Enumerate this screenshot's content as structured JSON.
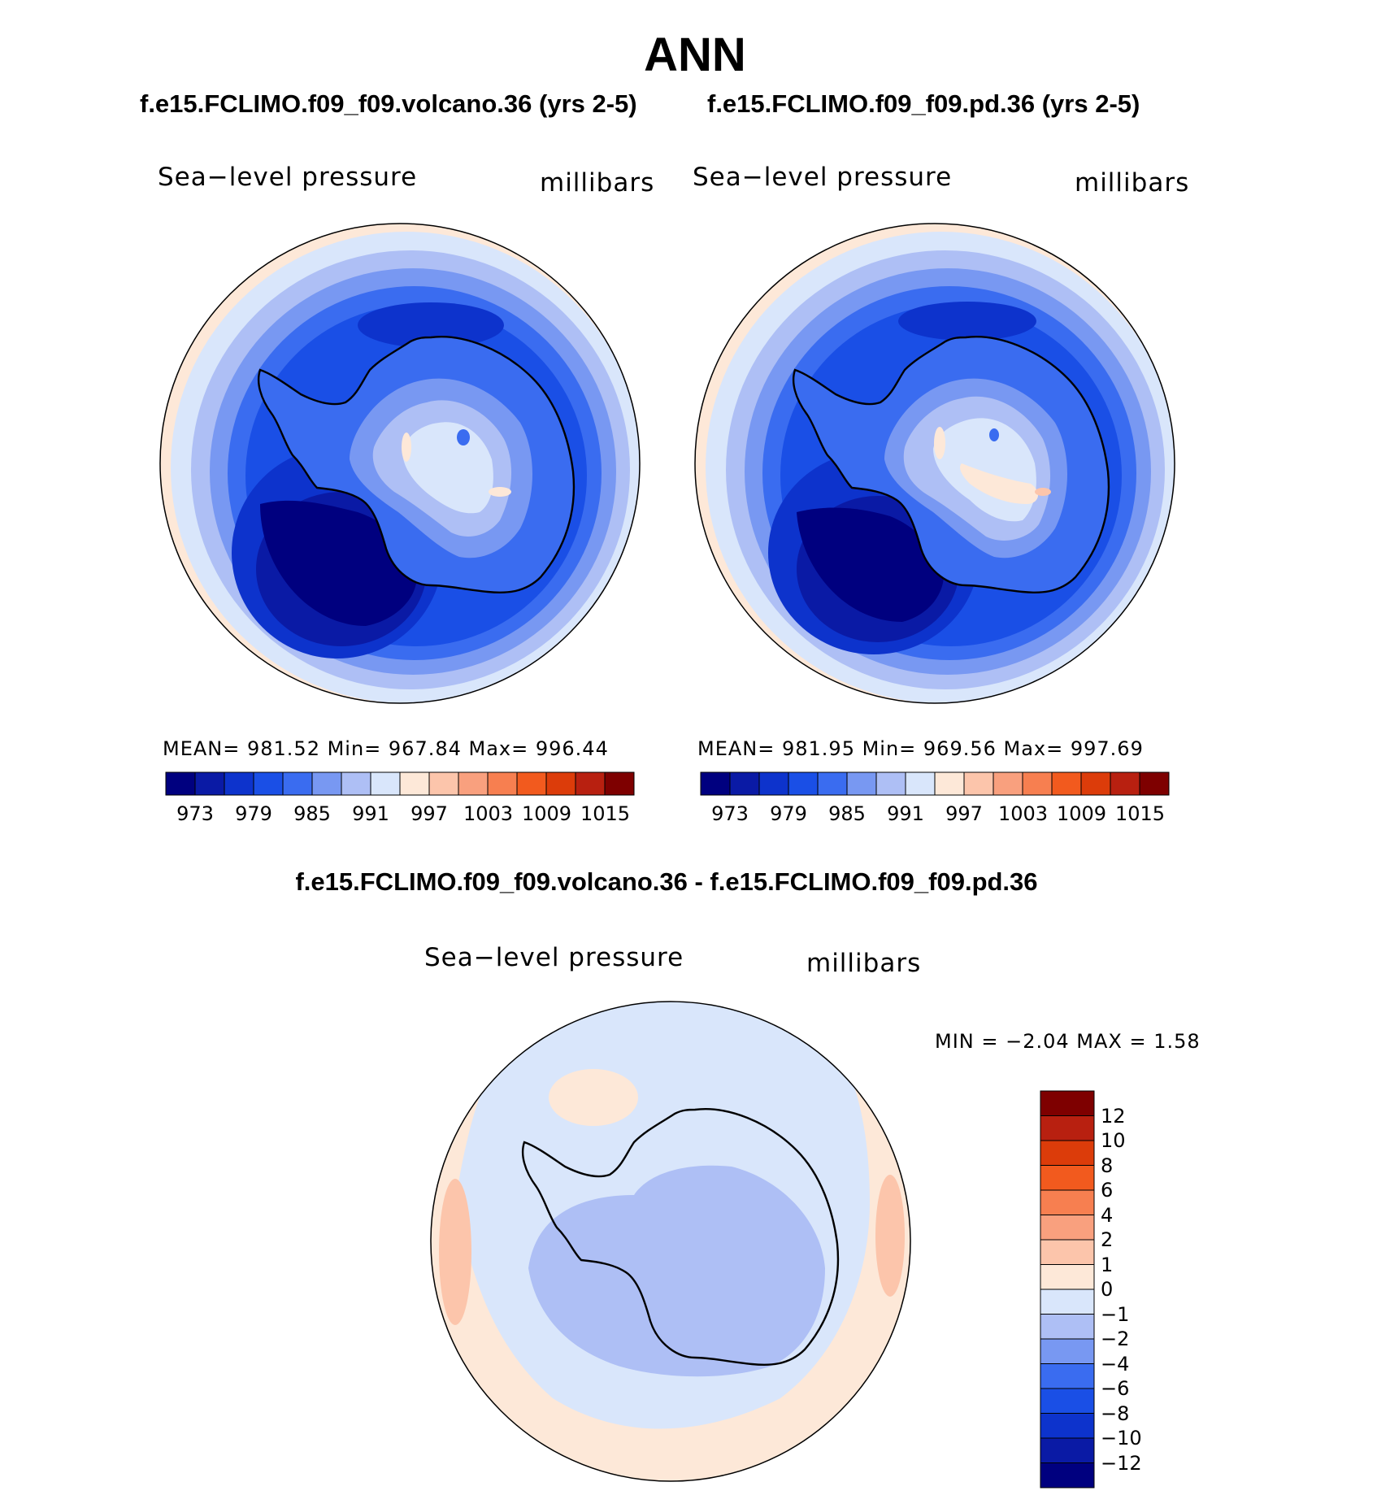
{
  "title": "ANN",
  "panels": [
    {
      "case_title": "f.e15.FCLIMO.f09_f09.volcano.36 (yrs 2-5)",
      "variable": "Sea−level pressure",
      "units": "millibars",
      "stats": "MEAN=  981.52   Min=  967.84   Max=  996.44"
    },
    {
      "case_title": "f.e15.FCLIMO.f09_f09.pd.36 (yrs 2-5)",
      "variable": "Sea−level pressure",
      "units": "millibars",
      "stats": "MEAN=  981.95   Min=  969.56   Max=  997.69"
    }
  ],
  "abs_colorbar": {
    "colors": [
      "#00007f",
      "#0a1aa5",
      "#0d33cc",
      "#1a4fe6",
      "#3a6cf0",
      "#7898f2",
      "#aebff5",
      "#d9e6fb",
      "#fde8d8",
      "#fcc5ab",
      "#f9a07e",
      "#f77f50",
      "#f25a1e",
      "#dc3c0a",
      "#b82010",
      "#7e0000"
    ],
    "labels": [
      "973",
      "979",
      "985",
      "991",
      "997",
      "1003",
      "1009",
      "1015"
    ]
  },
  "difference": {
    "title": "f.e15.FCLIMO.f09_f09.volcano.36 - f.e15.FCLIMO.f09_f09.pd.36",
    "variable": "Sea−level pressure",
    "units": "millibars",
    "minmax": "MIN =   −2.04  MAX =     1.58"
  },
  "diff_colorbar": {
    "colors": [
      "#7e0000",
      "#b82010",
      "#dc3c0a",
      "#f25a1e",
      "#f77f50",
      "#f9a07e",
      "#fcc5ab",
      "#fde8d8",
      "#d9e6fb",
      "#aebff5",
      "#7898f2",
      "#3a6cf0",
      "#1a4fe6",
      "#0d33cc",
      "#0a1aa5",
      "#00007f"
    ],
    "labels": [
      "12",
      "10",
      "8",
      "6",
      "4",
      "2",
      "1",
      "0",
      "−1",
      "−2",
      "−4",
      "−6",
      "−8",
      "−10",
      "−12"
    ]
  }
}
